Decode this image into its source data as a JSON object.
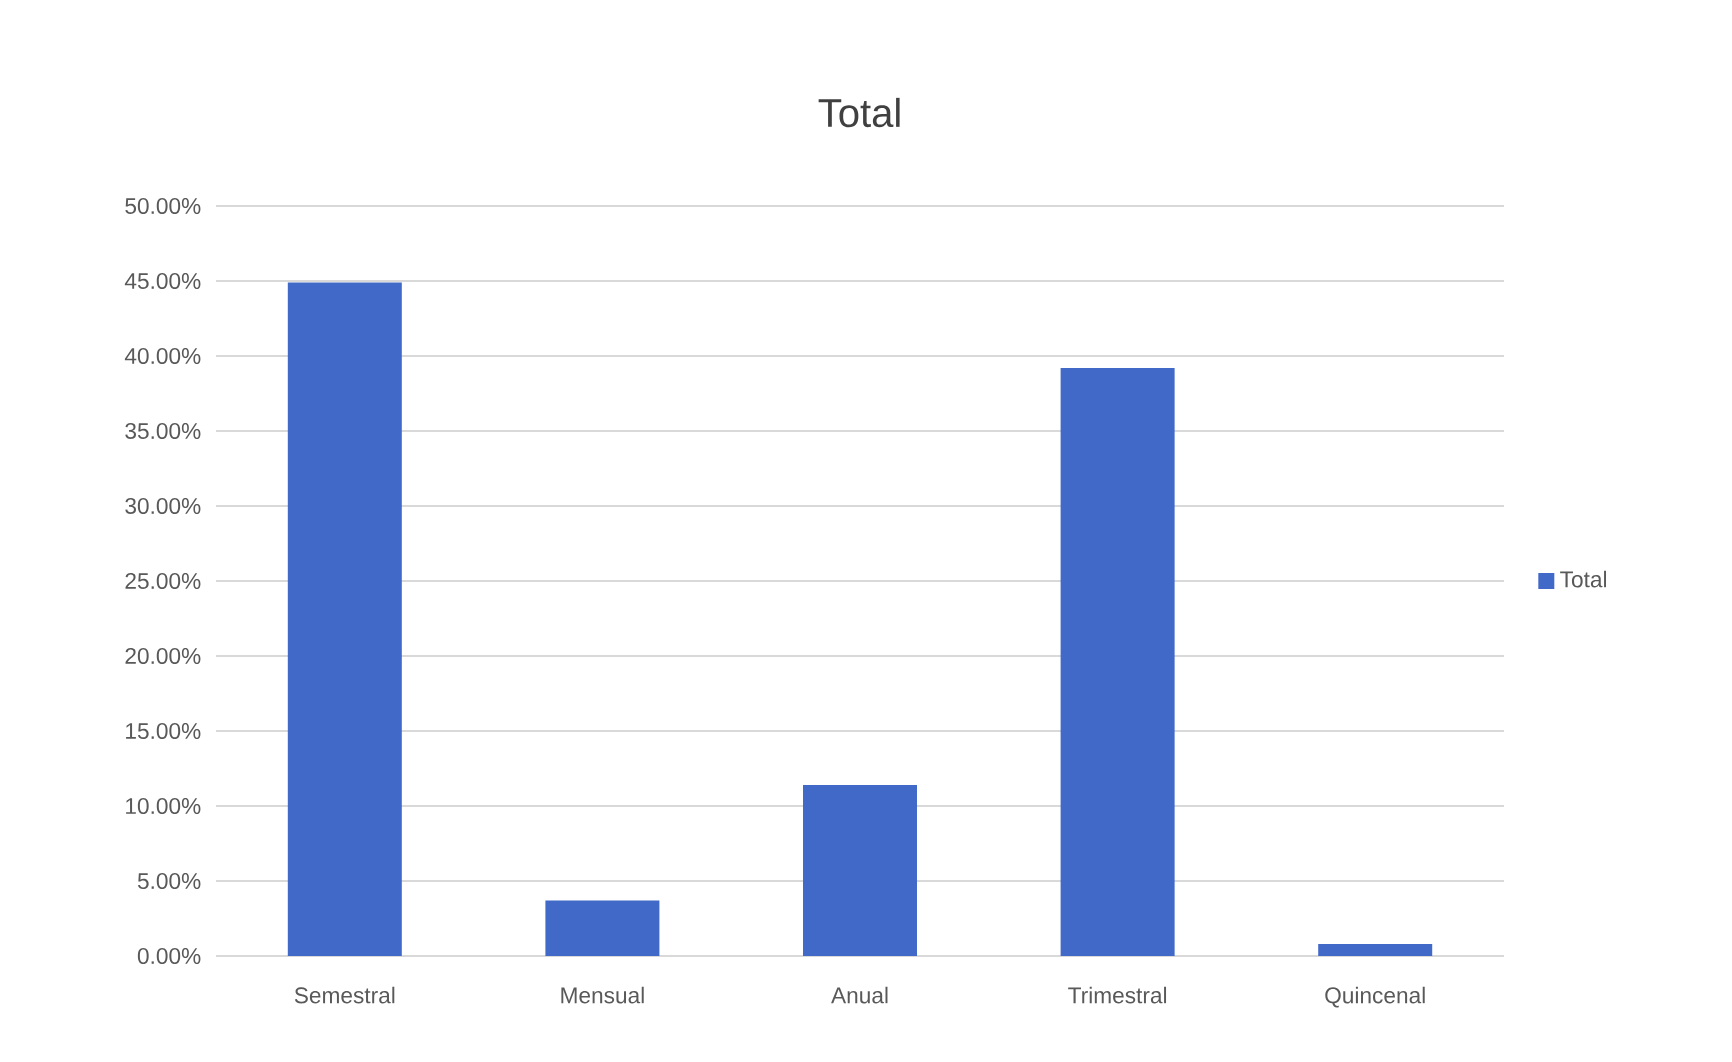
{
  "chart_data": {
    "type": "bar",
    "title": "Total",
    "categories": [
      "Semestral",
      "Mensual",
      "Anual",
      "Trimestral",
      "Quincenal"
    ],
    "series": [
      {
        "name": "Total",
        "color": "#4169c8",
        "values": [
          44.9,
          3.7,
          11.4,
          39.2,
          0.8
        ]
      }
    ],
    "ylim": [
      0,
      50
    ],
    "yticks": [
      {
        "value": 0,
        "label": "0.00%"
      },
      {
        "value": 5,
        "label": "5.00%"
      },
      {
        "value": 10,
        "label": "10.00%"
      },
      {
        "value": 15,
        "label": "15.00%"
      },
      {
        "value": 20,
        "label": "20.00%"
      },
      {
        "value": 25,
        "label": "25.00%"
      },
      {
        "value": 30,
        "label": "30.00%"
      },
      {
        "value": 35,
        "label": "35.00%"
      },
      {
        "value": 40,
        "label": "40.00%"
      },
      {
        "value": 45,
        "label": "45.00%"
      },
      {
        "value": 50,
        "label": "50.00%"
      }
    ],
    "grid": "y",
    "legend": "right"
  }
}
